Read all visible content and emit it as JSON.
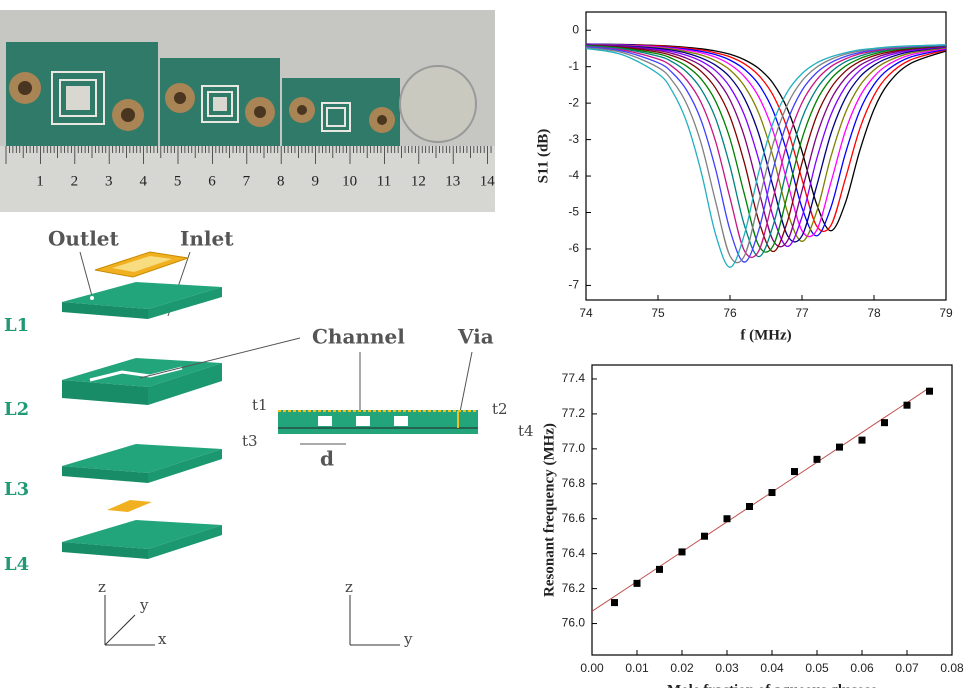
{
  "photo": {
    "ruler_labels": [
      "1",
      "2",
      "3",
      "4",
      "5",
      "6",
      "7",
      "8",
      "9",
      "10",
      "11",
      "12",
      "13",
      "14"
    ]
  },
  "diagram": {
    "outlet": "Outlet",
    "inlet": "Inlet",
    "layers": [
      "L1",
      "L2",
      "L3",
      "L4"
    ],
    "channel": "Channel",
    "via": "Via",
    "dims": [
      "t1",
      "t2",
      "t3",
      "t4",
      "d"
    ],
    "axes_3d": [
      "z",
      "y",
      "x"
    ],
    "axes_2d": [
      "z",
      "y"
    ]
  },
  "chart_data": [
    {
      "type": "line",
      "xlabel": "f (MHz)",
      "ylabel": "S11 (dB)",
      "xlim": [
        74,
        79
      ],
      "xticks": [
        74,
        75,
        76,
        77,
        78,
        79
      ],
      "ylim": [
        -7.4,
        0.5
      ],
      "yticks": [
        0,
        -1,
        -2,
        -3,
        -4,
        -5,
        -6,
        -7
      ],
      "x": [
        74,
        74.5,
        75,
        75.2,
        75.4,
        75.6,
        75.8,
        76,
        76.2,
        76.4,
        76.6,
        76.8,
        77,
        77.2,
        77.4,
        77.6,
        77.8,
        78,
        78.2,
        78.5,
        79
      ],
      "series": [
        {
          "color": "#000000",
          "values": [
            -0.38,
            -0.39,
            -0.42,
            -0.44,
            -0.47,
            -0.51,
            -0.57,
            -0.66,
            -0.81,
            -1.05,
            -1.46,
            -2.17,
            -3.32,
            -4.75,
            -5.5,
            -4.75,
            -3.32,
            -2.17,
            -1.46,
            -0.92,
            -0.57
          ]
        },
        {
          "color": "#ff0000",
          "values": [
            -0.38,
            -0.4,
            -0.43,
            -0.46,
            -0.49,
            -0.54,
            -0.62,
            -0.73,
            -0.92,
            -1.24,
            -1.79,
            -2.72,
            -4.09,
            -5.36,
            -5.36,
            -4.09,
            -2.72,
            -1.79,
            -1.24,
            -0.82,
            -0.54
          ]
        },
        {
          "color": "#0000ff",
          "values": [
            -0.38,
            -0.4,
            -0.45,
            -0.48,
            -0.52,
            -0.58,
            -0.67,
            -0.82,
            -1.07,
            -1.49,
            -2.22,
            -3.4,
            -4.87,
            -5.64,
            -4.87,
            -3.4,
            -2.22,
            -1.49,
            -1.07,
            -0.74,
            -0.52
          ]
        },
        {
          "color": "#ff00ff",
          "values": [
            -0.39,
            -0.41,
            -0.46,
            -0.5,
            -0.55,
            -0.62,
            -0.74,
            -0.94,
            -1.27,
            -1.83,
            -2.78,
            -4.19,
            -5.5,
            -5.5,
            -4.19,
            -2.78,
            -1.83,
            -1.27,
            -0.94,
            -0.68,
            -0.5
          ]
        },
        {
          "color": "#808000",
          "values": [
            -0.39,
            -0.42,
            -0.48,
            -0.52,
            -0.59,
            -0.68,
            -0.84,
            -1.09,
            -1.53,
            -2.28,
            -3.48,
            -5.0,
            -5.79,
            -5.0,
            -3.48,
            -2.28,
            -1.53,
            -1.09,
            -0.84,
            -0.63,
            -0.48
          ]
        },
        {
          "color": "#000080",
          "values": [
            -0.4,
            -0.43,
            -0.5,
            -0.55,
            -0.63,
            -0.76,
            -0.96,
            -1.29,
            -1.87,
            -2.85,
            -4.3,
            -5.64,
            -5.64,
            -4.3,
            -2.85,
            -1.87,
            -1.29,
            -0.96,
            -0.76,
            -0.59,
            -0.46
          ]
        },
        {
          "color": "#8000ff",
          "values": [
            -0.4,
            -0.44,
            -0.53,
            -0.59,
            -0.69,
            -0.85,
            -1.11,
            -1.56,
            -2.33,
            -3.56,
            -5.12,
            -5.93,
            -5.12,
            -3.56,
            -2.33,
            -1.56,
            -1.11,
            -0.85,
            -0.69,
            -0.56,
            -0.45
          ]
        },
        {
          "color": "#800080",
          "values": [
            -0.41,
            -0.45,
            -0.56,
            -0.64,
            -0.77,
            -0.97,
            -1.32,
            -1.91,
            -2.92,
            -4.4,
            -5.77,
            -5.77,
            -4.4,
            -2.92,
            -1.91,
            -1.32,
            -0.97,
            -0.77,
            -0.64,
            -0.53,
            -0.44
          ]
        },
        {
          "color": "#800000",
          "values": [
            -0.42,
            -0.47,
            -0.6,
            -0.7,
            -0.86,
            -1.13,
            -1.59,
            -2.37,
            -3.64,
            -5.23,
            -6.07,
            -5.23,
            -3.64,
            -2.37,
            -1.59,
            -1.13,
            -0.86,
            -0.7,
            -0.6,
            -0.51,
            -0.43
          ]
        },
        {
          "color": "#008000",
          "values": [
            -0.42,
            -0.49,
            -0.65,
            -0.78,
            -0.99,
            -1.34,
            -1.95,
            -2.98,
            -4.5,
            -5.91,
            -5.91,
            -4.5,
            -2.98,
            -1.95,
            -1.34,
            -0.99,
            -0.78,
            -0.65,
            -0.56,
            -0.49,
            -0.42
          ]
        },
        {
          "color": "#008080",
          "values": [
            -0.43,
            -0.51,
            -0.71,
            -0.87,
            -1.15,
            -1.62,
            -2.42,
            -3.73,
            -5.35,
            -6.21,
            -5.35,
            -3.73,
            -2.42,
            -1.62,
            -1.15,
            -0.87,
            -0.71,
            -0.6,
            -0.54,
            -0.47,
            -0.42
          ]
        },
        {
          "color": "#c71585",
          "values": [
            -0.45,
            -0.54,
            -0.79,
            -1.0,
            -1.37,
            -1.99,
            -3.05,
            -4.6,
            -6.05,
            -6.05,
            -4.6,
            -3.05,
            -1.99,
            -1.37,
            -1.0,
            -0.79,
            -0.65,
            -0.57,
            -0.51,
            -0.46,
            -0.41
          ]
        },
        {
          "color": "#4040ff",
          "values": [
            -0.46,
            -0.57,
            -0.89,
            -1.17,
            -1.65,
            -2.48,
            -3.81,
            -5.48,
            -6.36,
            -5.48,
            -3.81,
            -2.48,
            -1.65,
            -1.17,
            -0.89,
            -0.72,
            -0.61,
            -0.54,
            -0.49,
            -0.45,
            -0.41
          ]
        },
        {
          "color": "#808080",
          "values": [
            -0.48,
            -0.61,
            -1.02,
            -1.39,
            -2.03,
            -3.11,
            -4.7,
            -6.19,
            -6.19,
            -4.7,
            -3.11,
            -2.03,
            -1.39,
            -1.02,
            -0.8,
            -0.66,
            -0.57,
            -0.52,
            -0.48,
            -0.44,
            -0.4
          ]
        },
        {
          "color": "#20b0c0",
          "values": [
            -0.5,
            -0.67,
            -1.19,
            -1.68,
            -2.53,
            -3.89,
            -5.6,
            -6.5,
            -5.6,
            -3.89,
            -2.53,
            -1.68,
            -1.19,
            -0.9,
            -0.73,
            -0.62,
            -0.54,
            -0.5,
            -0.46,
            -0.43,
            -0.4
          ]
        }
      ]
    },
    {
      "type": "scatter",
      "xlabel": "Mole fraction of aqueous glucose",
      "ylabel": "Resonant frequency (MHz)",
      "xlim": [
        0,
        0.08
      ],
      "xticks": [
        {
          "value": 0,
          "label": "0.00"
        },
        0.01,
        0.02,
        0.03,
        0.04,
        0.05,
        0.06,
        0.07,
        0.08
      ],
      "ylim": [
        75.82,
        77.48
      ],
      "yticks": [
        {
          "value": 76,
          "label": "76.0"
        },
        76.2,
        76.4,
        76.6,
        76.8,
        {
          "value": 77,
          "label": "77.0"
        },
        77.2,
        77.4
      ],
      "x": [
        0.005,
        0.01,
        0.015,
        0.02,
        0.025,
        0.03,
        0.035,
        0.04,
        0.045,
        0.05,
        0.055,
        0.06,
        0.065,
        0.07,
        0.075
      ],
      "values": [
        76.12,
        76.23,
        76.31,
        76.41,
        76.5,
        76.6,
        76.67,
        76.75,
        76.87,
        76.94,
        77.01,
        77.05,
        77.15,
        77.25,
        77.33
      ],
      "color": "#000000",
      "fit": {
        "x": [
          0,
          0.075
        ],
        "values": [
          76.07,
          77.35
        ],
        "color": "#c05050"
      }
    }
  ]
}
